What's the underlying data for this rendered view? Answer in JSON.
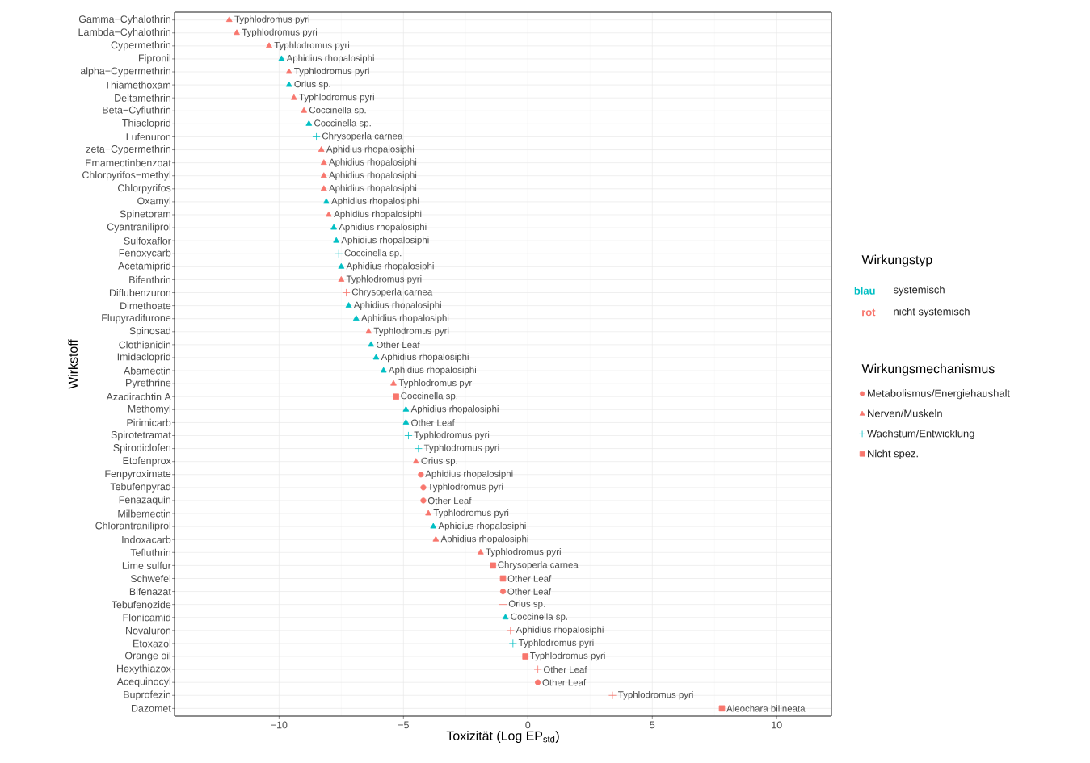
{
  "chart_data": {
    "type": "scatter",
    "orientation": "horizontal",
    "xlabel": "Toxizität (Log EP$_{std}$)",
    "ylabel": "Wirkstoff",
    "legend_title": "Wirkungsmechanismus",
    "legend": "right",
    "grid": true,
    "annotations": [
      "Wirkungstyp",
      "blau",
      "systemisch",
      "rot",
      "nicht systemisch"
    ],
    "xlim": [
      -14.2,
      12.2
    ],
    "xticks": [
      {
        "value": -10,
        "label": "−10"
      },
      {
        "value": -5,
        "label": "−5"
      },
      0,
      5,
      10
    ],
    "categories": [
      "Gamma−Cyhalothrin",
      "Lambda−Cyhalothrin",
      "Cypermethrin",
      "Fipronil",
      "alpha−Cypermethrin",
      "Thiamethoxam",
      "Deltamethrin",
      "Beta−Cyfluthrin",
      "Thiacloprid",
      "Lufenuron",
      "zeta−Cypermethrin",
      "Emamectinbenzoat",
      "Chlorpyrifos−methyl",
      "Chlorpyrifos",
      "Oxamyl",
      "Spinetoram",
      "Cyantraniliprol",
      "Sulfoxaflor",
      "Fenoxycarb",
      "Acetamiprid",
      "Bifenthrin",
      "Diflubenzuron",
      "Dimethoate",
      "Flupyradifurone",
      "Spinosad",
      "Clothianidin",
      "Imidacloprid",
      "Abamectin",
      "Pyrethrine",
      "Azadirachtin A",
      "Methomyl",
      "Pirimicarb",
      "Spirotetramat",
      "Spirodiclofen",
      "Etofenprox",
      "Fenpyroximate",
      "Tebufenpyrad",
      "Fenazaquin",
      "Milbemectin",
      "Chlorantraniliprol",
      "Indoxacarb",
      "Tefluthrin",
      "Lime sulfur",
      "Schwefel",
      "Bifenazat",
      "Tebufenozide",
      "Flonicamid",
      "Novaluron",
      "Etoxazol",
      "Orange oil",
      "Hexythiazox",
      "Acequinocyl",
      "Buprofezin",
      "Dazomet"
    ],
    "series": [
      {
        "name": "Metabolismus/Energiehaushalt",
        "marker": "circle",
        "values": [
          null,
          null,
          null,
          null,
          null,
          null,
          null,
          null,
          null,
          null,
          null,
          null,
          null,
          null,
          null,
          null,
          null,
          null,
          null,
          null,
          null,
          null,
          null,
          null,
          null,
          null,
          null,
          null,
          null,
          null,
          null,
          null,
          null,
          null,
          null,
          -4.3,
          -4.2,
          -4.2,
          null,
          null,
          null,
          null,
          null,
          null,
          -1.0,
          null,
          null,
          null,
          null,
          null,
          null,
          0.4,
          null,
          null
        ],
        "colors": [
          null,
          null,
          null,
          null,
          null,
          null,
          null,
          null,
          null,
          null,
          null,
          null,
          null,
          null,
          null,
          null,
          null,
          null,
          null,
          null,
          null,
          null,
          null,
          null,
          null,
          null,
          null,
          null,
          null,
          null,
          null,
          null,
          null,
          null,
          null,
          "#f8766d",
          "#f8766d",
          "#f8766d",
          null,
          null,
          null,
          null,
          null,
          null,
          "#f8766d",
          null,
          null,
          null,
          null,
          null,
          null,
          "#f8766d",
          null,
          null
        ],
        "value_labels": [
          null,
          null,
          null,
          null,
          null,
          null,
          null,
          null,
          null,
          null,
          null,
          null,
          null,
          null,
          null,
          null,
          null,
          null,
          null,
          null,
          null,
          null,
          null,
          null,
          null,
          null,
          null,
          null,
          null,
          null,
          null,
          null,
          null,
          null,
          null,
          "Aphidius rhopalosiphi",
          "Typhlodromus pyri",
          "Other Leaf",
          null,
          null,
          null,
          null,
          null,
          null,
          "Other Leaf",
          null,
          null,
          null,
          null,
          null,
          null,
          "Other Leaf",
          null,
          null
        ]
      },
      {
        "name": "Nerven/Muskeln",
        "marker": "triangle",
        "values": [
          -12.0,
          -11.7,
          -10.4,
          -9.9,
          -9.6,
          -9.6,
          -9.4,
          -9.0,
          -8.8,
          null,
          -8.3,
          -8.2,
          -8.2,
          -8.2,
          -8.1,
          -8.0,
          -7.8,
          -7.7,
          null,
          -7.5,
          -7.5,
          null,
          -7.2,
          -6.9,
          -6.4,
          -6.3,
          -6.1,
          -5.8,
          -5.4,
          null,
          -4.9,
          -4.9,
          null,
          null,
          -4.5,
          null,
          null,
          null,
          -4.0,
          -3.8,
          -3.7,
          -1.9,
          null,
          null,
          null,
          null,
          -0.9,
          null,
          null,
          null,
          null,
          null,
          null,
          null
        ],
        "colors": [
          "#f8766d",
          "#f8766d",
          "#f8766d",
          "#00bfc4",
          "#f8766d",
          "#00bfc4",
          "#f8766d",
          "#f8766d",
          "#00bfc4",
          null,
          "#f8766d",
          "#f8766d",
          "#f8766d",
          "#f8766d",
          "#00bfc4",
          "#f8766d",
          "#00bfc4",
          "#00bfc4",
          null,
          "#00bfc4",
          "#f8766d",
          null,
          "#00bfc4",
          "#00bfc4",
          "#f8766d",
          "#00bfc4",
          "#00bfc4",
          "#00bfc4",
          "#f8766d",
          null,
          "#00bfc4",
          "#00bfc4",
          null,
          null,
          "#f8766d",
          null,
          null,
          null,
          "#f8766d",
          "#00bfc4",
          "#f8766d",
          "#f8766d",
          null,
          null,
          null,
          null,
          "#00bfc4",
          null,
          null,
          null,
          null,
          null,
          null,
          null
        ],
        "value_labels": [
          "Typhlodromus pyri",
          "Typhlodromus pyri",
          "Typhlodromus pyri",
          "Aphidius rhopalosiphi",
          "Typhlodromus pyri",
          "Orius sp.",
          "Typhlodromus pyri",
          "Coccinella sp.",
          "Coccinella sp.",
          null,
          "Aphidius rhopalosiphi",
          "Aphidius rhopalosiphi",
          "Aphidius rhopalosiphi",
          "Aphidius rhopalosiphi",
          "Aphidius rhopalosiphi",
          "Aphidius rhopalosiphi",
          "Aphidius rhopalosiphi",
          "Aphidius rhopalosiphi",
          null,
          "Aphidius rhopalosiphi",
          "Typhlodromus pyri",
          null,
          "Aphidius rhopalosiphi",
          "Aphidius rhopalosiphi",
          "Typhlodromus pyri",
          "Other Leaf",
          "Aphidius rhopalosiphi",
          "Aphidius rhopalosiphi",
          "Typhlodromus pyri",
          null,
          "Aphidius rhopalosiphi",
          "Other Leaf",
          null,
          null,
          "Orius sp.",
          null,
          null,
          null,
          "Typhlodromus pyri",
          "Aphidius rhopalosiphi",
          "Aphidius rhopalosiphi",
          "Typhlodromus pyri",
          null,
          null,
          null,
          null,
          "Coccinella sp.",
          null,
          null,
          null,
          null,
          null,
          null,
          null
        ]
      },
      {
        "name": "Wachstum/Entwicklung",
        "marker": "cross",
        "values": [
          null,
          null,
          null,
          null,
          null,
          null,
          null,
          null,
          null,
          -8.5,
          null,
          null,
          null,
          null,
          null,
          null,
          null,
          null,
          -7.6,
          null,
          null,
          -7.3,
          null,
          null,
          null,
          null,
          null,
          null,
          null,
          null,
          null,
          null,
          -4.8,
          -4.4,
          null,
          null,
          null,
          null,
          null,
          null,
          null,
          null,
          null,
          null,
          null,
          -1.0,
          null,
          -0.7,
          -0.6,
          null,
          0.4,
          null,
          3.4,
          null
        ],
        "colors": [
          null,
          null,
          null,
          null,
          null,
          null,
          null,
          null,
          null,
          "#00bfc4",
          null,
          null,
          null,
          null,
          null,
          null,
          null,
          null,
          "#00bfc4",
          null,
          null,
          "#f8766d",
          null,
          null,
          null,
          null,
          null,
          null,
          null,
          null,
          null,
          null,
          "#00bfc4",
          "#00bfc4",
          null,
          null,
          null,
          null,
          null,
          null,
          null,
          null,
          null,
          null,
          null,
          "#f8766d",
          null,
          "#f8766d",
          "#00bfc4",
          null,
          "#f8766d",
          null,
          "#f8766d",
          null
        ],
        "value_labels": [
          null,
          null,
          null,
          null,
          null,
          null,
          null,
          null,
          null,
          "Chrysoperla carnea",
          null,
          null,
          null,
          null,
          null,
          null,
          null,
          null,
          "Coccinella sp.",
          null,
          null,
          "Chrysoperla carnea",
          null,
          null,
          null,
          null,
          null,
          null,
          null,
          null,
          null,
          null,
          "Typhlodromus pyri",
          "Typhlodromus pyri",
          null,
          null,
          null,
          null,
          null,
          null,
          null,
          null,
          null,
          null,
          null,
          "Orius sp.",
          null,
          "Aphidius rhopalosiphi",
          "Typhlodromus pyri",
          null,
          "Other Leaf",
          null,
          "Typhlodromus pyri",
          null
        ]
      },
      {
        "name": "Nicht spez.",
        "marker": "square",
        "values": [
          null,
          null,
          null,
          null,
          null,
          null,
          null,
          null,
          null,
          null,
          null,
          null,
          null,
          null,
          null,
          null,
          null,
          null,
          null,
          null,
          null,
          null,
          null,
          null,
          null,
          null,
          null,
          null,
          null,
          -5.3,
          null,
          null,
          null,
          null,
          null,
          null,
          null,
          null,
          null,
          null,
          null,
          null,
          -1.4,
          -1.0,
          null,
          null,
          null,
          null,
          null,
          -0.1,
          null,
          null,
          null,
          7.8
        ],
        "colors": [
          null,
          null,
          null,
          null,
          null,
          null,
          null,
          null,
          null,
          null,
          null,
          null,
          null,
          null,
          null,
          null,
          null,
          null,
          null,
          null,
          null,
          null,
          null,
          null,
          null,
          null,
          null,
          null,
          null,
          "#f8766d",
          null,
          null,
          null,
          null,
          null,
          null,
          null,
          null,
          null,
          null,
          null,
          null,
          "#f8766d",
          "#f8766d",
          null,
          null,
          null,
          null,
          null,
          "#f8766d",
          null,
          null,
          null,
          "#f8766d"
        ],
        "value_labels": [
          null,
          null,
          null,
          null,
          null,
          null,
          null,
          null,
          null,
          null,
          null,
          null,
          null,
          null,
          null,
          null,
          null,
          null,
          null,
          null,
          null,
          null,
          null,
          null,
          null,
          null,
          null,
          null,
          null,
          "Coccinella sp.",
          null,
          null,
          null,
          null,
          null,
          null,
          null,
          null,
          null,
          null,
          null,
          null,
          "Chrysoperla carnea",
          "Other Leaf",
          null,
          null,
          null,
          null,
          null,
          "Typhlodromus pyri",
          null,
          null,
          null,
          "Aleochara bilineata"
        ]
      }
    ]
  }
}
